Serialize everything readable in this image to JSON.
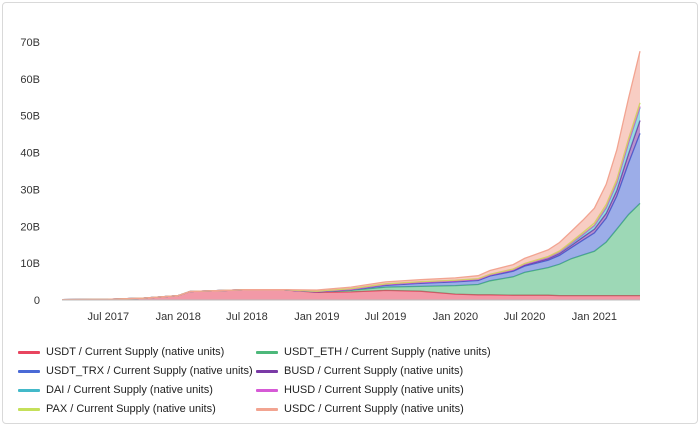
{
  "chart_data": {
    "type": "area",
    "stacked": true,
    "y_tick_labels": [
      "0",
      "10B",
      "20B",
      "30B",
      "40B",
      "50B",
      "60B",
      "70B"
    ],
    "y_ticks": [
      0,
      10,
      20,
      30,
      40,
      50,
      60,
      70
    ],
    "ylim": [
      0,
      70
    ],
    "x_tick_labels": [
      "Jul 2017",
      "Jan 2018",
      "Jul 2018",
      "Jan 2019",
      "Jul 2019",
      "Jan 2020",
      "Jul 2020",
      "Jan 2021"
    ],
    "x_ticks": [
      "2017-07-01",
      "2018-01-01",
      "2018-07-01",
      "2019-01-01",
      "2019-07-01",
      "2020-01-01",
      "2020-07-01",
      "2021-01-01"
    ],
    "xlim": [
      "2017-03-01",
      "2021-05-01"
    ],
    "x": [
      "2017-03-01",
      "2017-07-01",
      "2017-10-01",
      "2018-01-01",
      "2018-02-01",
      "2018-04-01",
      "2018-07-01",
      "2018-10-01",
      "2019-01-01",
      "2019-04-01",
      "2019-07-01",
      "2019-10-01",
      "2020-01-01",
      "2020-03-01",
      "2020-04-01",
      "2020-06-01",
      "2020-07-01",
      "2020-09-01",
      "2020-10-01",
      "2020-11-01",
      "2020-12-01",
      "2021-01-01",
      "2021-02-01",
      "2021-03-01",
      "2021-04-01",
      "2021-05-01"
    ],
    "series": [
      {
        "name": "USDT / Current Supply (native units)",
        "color": "#e8455f",
        "values": [
          0.1,
          0.2,
          0.5,
          1.2,
          2.3,
          2.5,
          2.8,
          2.8,
          2.1,
          2.2,
          2.6,
          2.4,
          1.6,
          1.4,
          1.4,
          1.3,
          1.3,
          1.3,
          1.2,
          1.2,
          1.2,
          1.2,
          1.2,
          1.2,
          1.2,
          1.2
        ]
      },
      {
        "name": "USDT_ETH / Current Supply (native units)",
        "color": "#4db87a",
        "values": [
          0,
          0,
          0,
          0,
          0,
          0,
          0,
          0,
          0.1,
          0.4,
          0.9,
          1.3,
          2.3,
          2.8,
          3.8,
          5.0,
          6.2,
          7.5,
          8.5,
          10.0,
          11.0,
          12.0,
          14.5,
          18.0,
          22.0,
          25.0
        ]
      },
      {
        "name": "USDT_TRX / Current Supply (native units)",
        "color": "#4a6ad6",
        "values": [
          0,
          0,
          0,
          0,
          0,
          0,
          0,
          0,
          0,
          0.2,
          0.5,
          0.8,
          1.0,
          1.1,
          1.3,
          1.5,
          1.7,
          2.0,
          2.4,
          3.0,
          4.0,
          5.0,
          6.5,
          9.0,
          14.0,
          19.0
        ]
      },
      {
        "name": "BUSD / Current Supply (native units)",
        "color": "#7a3aa6",
        "values": [
          0,
          0,
          0,
          0,
          0,
          0,
          0,
          0,
          0,
          0,
          0.1,
          0.2,
          0.2,
          0.2,
          0.2,
          0.3,
          0.3,
          0.4,
          0.5,
          0.6,
          0.8,
          1.0,
          1.3,
          1.5,
          2.5,
          3.5
        ]
      },
      {
        "name": "DAI / Current Supply (native units)",
        "color": "#43b9c9",
        "values": [
          0,
          0,
          0,
          0,
          0,
          0,
          0,
          0,
          0.1,
          0.1,
          0.1,
          0.1,
          0.1,
          0.1,
          0.1,
          0.1,
          0.2,
          0.3,
          0.4,
          0.5,
          0.7,
          1.0,
          1.5,
          2.0,
          3.0,
          3.5
        ]
      },
      {
        "name": "HUSD / Current Supply (native units)",
        "color": "#d65ad6",
        "values": [
          0,
          0,
          0,
          0,
          0,
          0,
          0,
          0,
          0,
          0,
          0,
          0,
          0,
          0,
          0,
          0,
          0,
          0,
          0,
          0.1,
          0.1,
          0.1,
          0.2,
          0.2,
          0.2,
          0.3
        ]
      },
      {
        "name": "PAX / Current Supply (native units)",
        "color": "#c5e05a",
        "values": [
          0,
          0,
          0,
          0,
          0,
          0,
          0,
          0,
          0.1,
          0.2,
          0.2,
          0.2,
          0.2,
          0.2,
          0.2,
          0.2,
          0.2,
          0.3,
          0.3,
          0.4,
          0.5,
          0.6,
          0.7,
          0.8,
          0.9,
          1.0
        ]
      },
      {
        "name": "USDC / Current Supply (native units)",
        "color": "#f2a491",
        "values": [
          0,
          0,
          0,
          0,
          0,
          0,
          0,
          0,
          0.3,
          0.4,
          0.5,
          0.5,
          0.6,
          0.8,
          1.0,
          1.2,
          1.4,
          1.8,
          2.3,
          2.8,
          3.3,
          4.0,
          5.5,
          8.0,
          11.0,
          14.0
        ]
      }
    ],
    "legend": {
      "placement": "bottom",
      "entries": [
        {
          "label": "USDT / Current Supply (native units)",
          "color": "#e8455f"
        },
        {
          "label": "USDT_ETH / Current Supply (native units)",
          "color": "#4db87a"
        },
        {
          "label": "USDT_TRX / Current Supply (native units)",
          "color": "#4a6ad6"
        },
        {
          "label": "BUSD / Current Supply (native units)",
          "color": "#7a3aa6"
        },
        {
          "label": "DAI / Current Supply (native units)",
          "color": "#43b9c9"
        },
        {
          "label": "HUSD / Current Supply (native units)",
          "color": "#d65ad6"
        },
        {
          "label": "PAX / Current Supply (native units)",
          "color": "#c5e05a"
        },
        {
          "label": "USDC / Current Supply (native units)",
          "color": "#f2a491"
        }
      ]
    },
    "grid": false
  }
}
